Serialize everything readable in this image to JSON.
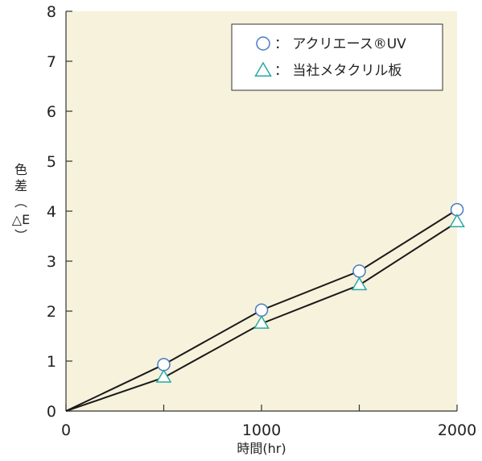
{
  "chart_data": {
    "type": "line",
    "title": "",
    "xlabel": "時間(hr)",
    "ylabel": "色差(△E)",
    "ylabel_chars": [
      "色",
      "差",
      "︵",
      "△E",
      "︶"
    ],
    "x": [
      0,
      500,
      1000,
      1500,
      2000
    ],
    "xlim": [
      0,
      2000
    ],
    "ylim": [
      0,
      8
    ],
    "xticks": [
      0,
      1000,
      2000
    ],
    "xtick_labels": [
      "0",
      "1000",
      "2000"
    ],
    "xticks_minor": [
      500,
      1500
    ],
    "yticks": [
      0,
      1,
      2,
      3,
      4,
      5,
      6,
      7,
      8
    ],
    "ytick_labels": [
      "0",
      "1",
      "2",
      "3",
      "4",
      "5",
      "6",
      "7",
      "8"
    ],
    "grid": false,
    "legend_position": "top-right",
    "background_color": "#f6f2dc",
    "series": [
      {
        "name": "アクリエース®UV",
        "legend_prefix": "：",
        "marker": "circle",
        "marker_color": "#4a7bc4",
        "line_color": "#1a1a1a",
        "values": [
          0,
          0.93,
          2.02,
          2.8,
          4.03
        ]
      },
      {
        "name": "当社メタクリル板",
        "legend_prefix": "：",
        "marker": "triangle",
        "marker_color": "#2aa9a0",
        "line_color": "#1a1a1a",
        "values": [
          0,
          0.67,
          1.75,
          2.52,
          3.78
        ]
      }
    ]
  }
}
